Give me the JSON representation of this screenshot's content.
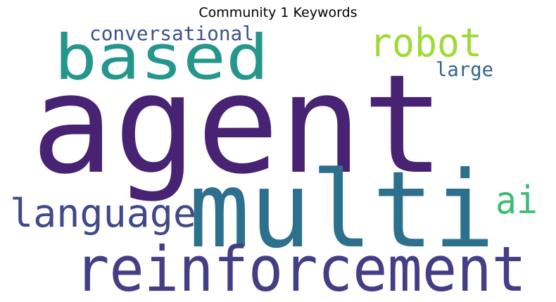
{
  "chart_data": {
    "type": "wordcloud",
    "title": "Community 1 Keywords",
    "words": [
      {
        "text": "agent",
        "weight": 1.0,
        "color": "#482374"
      },
      {
        "text": "multi",
        "weight": 0.78,
        "color": "#2d708e"
      },
      {
        "text": "reinforcement",
        "weight": 0.45,
        "color": "#433e85"
      },
      {
        "text": "based",
        "weight": 0.4,
        "color": "#25968b"
      },
      {
        "text": "language",
        "weight": 0.28,
        "color": "#3e4a89"
      },
      {
        "text": "robot",
        "weight": 0.27,
        "color": "#a0da39"
      },
      {
        "text": "ai",
        "weight": 0.24,
        "color": "#3dbc74"
      },
      {
        "text": "conversational",
        "weight": 0.14,
        "color": "#3b528b"
      },
      {
        "text": "large",
        "weight": 0.13,
        "color": "#33638d"
      }
    ]
  }
}
